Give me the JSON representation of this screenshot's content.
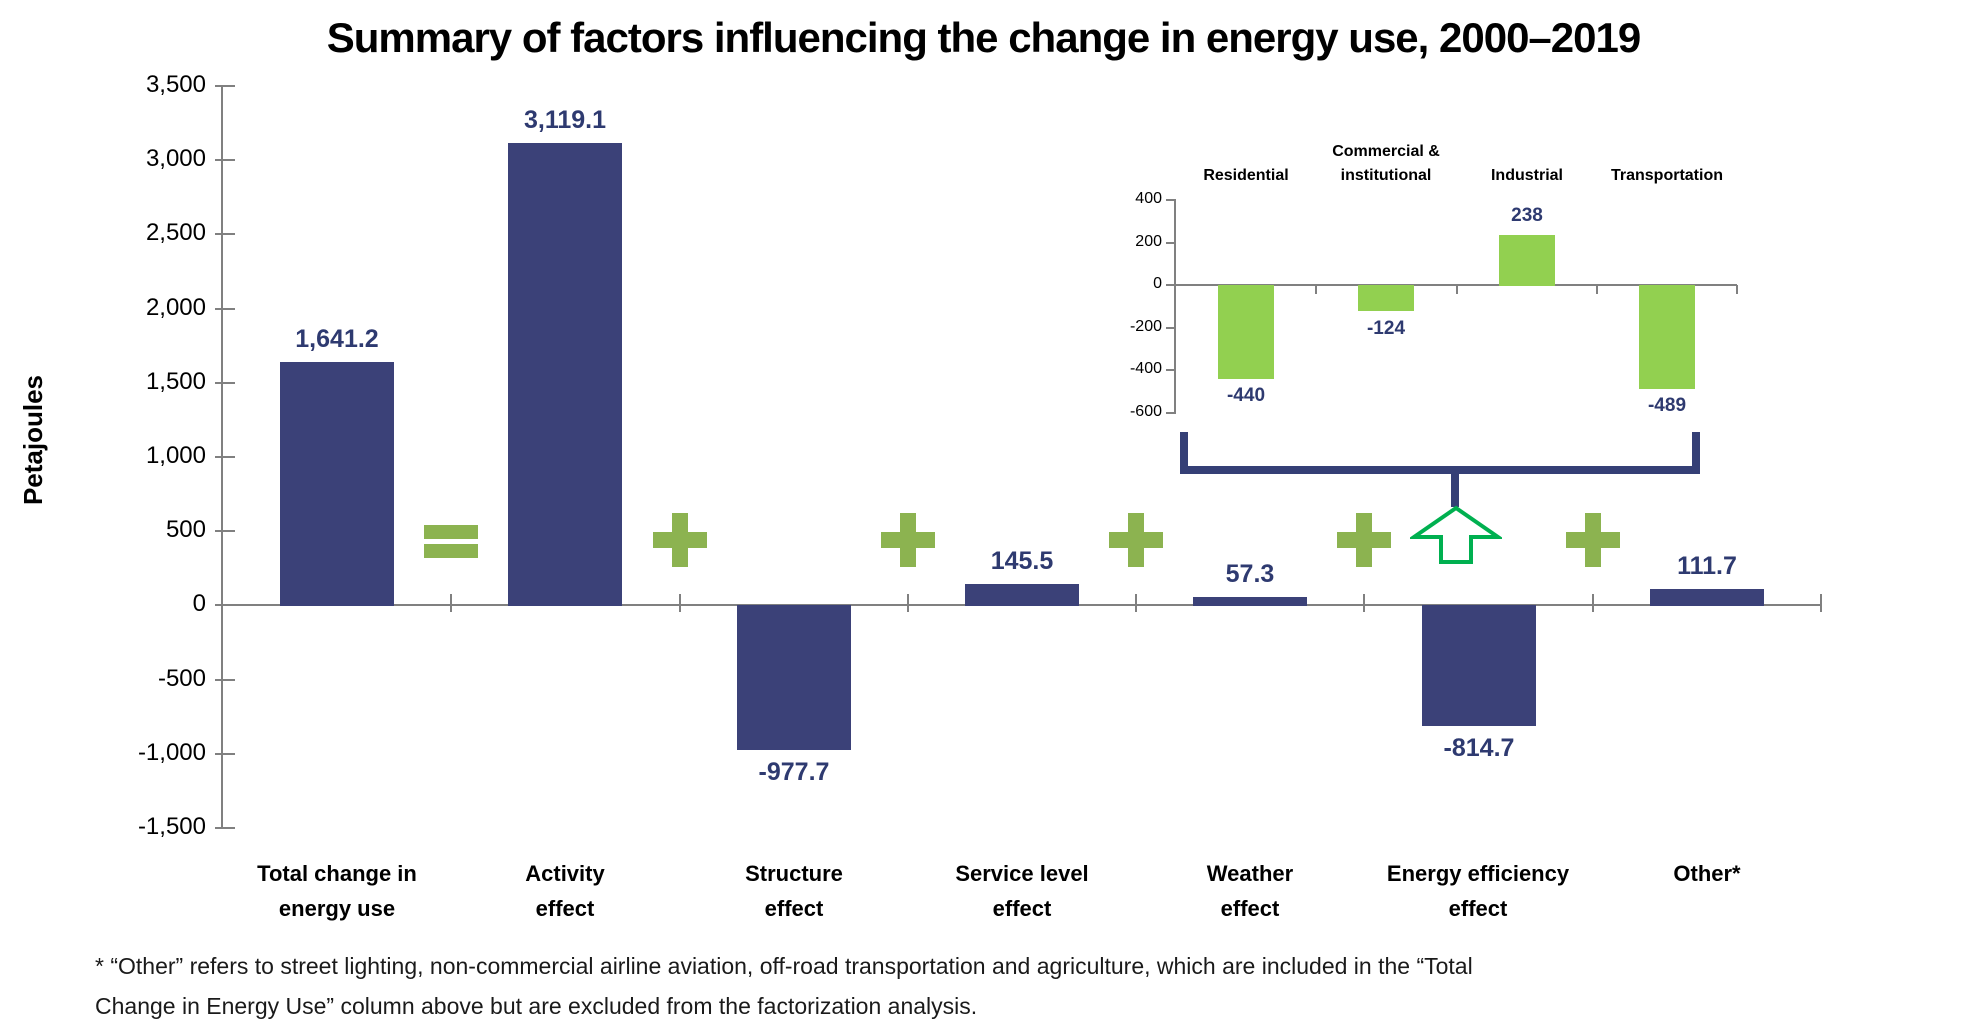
{
  "title": "Summary of factors influencing the change in energy use, 2000–2019",
  "y_axis_label": "Petajoules",
  "footnote": {
    "line1": "* “Other” refers to street lighting, non-commercial airline aviation, off-road transportation and agriculture, which are included in the “Total",
    "line2": "Change in Energy Use” column above but are excluded from the factorization analysis."
  },
  "colors": {
    "bar_navy": "#3B4178",
    "label_navy": "#2E3A70",
    "operator_green": "#8CB350",
    "inset_bar_green": "#92D050",
    "arrow_green": "#00B050",
    "bracket_navy": "#353F76",
    "axis_gray": "#808080"
  },
  "chart_data": [
    {
      "id": "main",
      "type": "bar",
      "title": "Summary of factors influencing the change in energy use, 2000–2019",
      "xlabel": "",
      "ylabel": "Petajoules",
      "ylim": [
        -1500,
        3500
      ],
      "ytick_step": 500,
      "ytick_labels": [
        "3,500",
        "3,000",
        "2,500",
        "2,000",
        "1,500",
        "1,000",
        "500",
        "0",
        "-500",
        "-1,000",
        "-1,500"
      ],
      "categories": [
        "Total change in\nenergy use",
        "Activity\neffect",
        "Structure\neffect",
        "Service level\neffect",
        "Weather\neffect",
        "Energy efficiency\neffect",
        "Other*"
      ],
      "values": [
        1641.2,
        3119.1,
        -977.7,
        145.5,
        57.3,
        -814.7,
        111.7
      ],
      "value_labels": [
        "1,641.2",
        "3,119.1",
        "-977.7",
        "145.5",
        "57.3",
        "-814.7",
        "111.7"
      ],
      "operators_between_bars": [
        "=",
        "+",
        "+",
        "+",
        "+",
        "+"
      ],
      "grid": false,
      "legend": "none"
    },
    {
      "id": "inset-energy-efficiency-by-sector",
      "type": "bar",
      "title": "",
      "xlabel": "",
      "ylabel": "",
      "ylim": [
        -600,
        400
      ],
      "ytick_step": 200,
      "ytick_labels": [
        "400",
        "200",
        "0",
        "-200",
        "-400",
        "-600"
      ],
      "categories": [
        "Residential",
        "Commercial &\ninstitutional",
        "Industrial",
        "Transportation"
      ],
      "values": [
        -440,
        -124,
        238,
        -489
      ],
      "value_labels": [
        "-440",
        "-124",
        "238",
        "-489"
      ],
      "annotation": "bracket with up-arrow linking inset breakdown to Energy efficiency effect column",
      "grid": false,
      "legend": "none"
    }
  ]
}
